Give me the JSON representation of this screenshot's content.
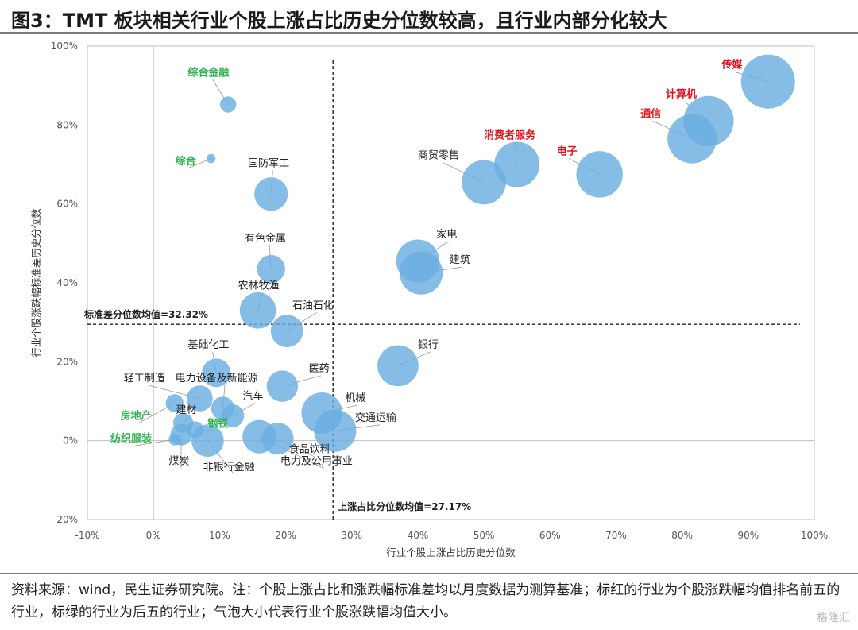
{
  "title": "图3：TMT 板块相关行业个股上涨占比历史分位数较高，且行业内部分化较大",
  "source_note": "资料来源：wind，民生证券研究院。注：个股上涨占比和涨跌幅标准差均以月度数据为测算基准；标红的行业为个股涨跌幅均值排名前五的行业，标绿的行业为后五的行业；气泡大小代表行业个股涨跌幅均值大小。",
  "watermark": "格隆汇",
  "chart_data": {
    "type": "scatter",
    "subtype": "bubble",
    "xlabel": "行业个股上涨占比历史分位数",
    "ylabel": "行业个股涨跌幅标准差历史分位数",
    "xlim": [
      -0.1,
      1.0
    ],
    "ylim": [
      -0.2,
      1.0
    ],
    "x_ticks": [
      "-10%",
      "0%",
      "10%",
      "20%",
      "30%",
      "40%",
      "50%",
      "60%",
      "70%",
      "80%",
      "90%",
      "100%"
    ],
    "y_ticks": [
      "-20%",
      "0%",
      "20%",
      "40%",
      "60%",
      "80%",
      "100%"
    ],
    "x_tick_values": [
      -0.1,
      0,
      0.1,
      0.2,
      0.3,
      0.4,
      0.5,
      0.6,
      0.7,
      0.8,
      0.9,
      1.0
    ],
    "y_tick_values": [
      -0.2,
      0,
      0.2,
      0.4,
      0.6,
      0.8,
      1.0
    ],
    "grid": false,
    "bubble_color": "#6aaee0",
    "highlight_colors": {
      "top5": "#e0141e",
      "bottom5": "#2eb34f"
    },
    "reference_lines": {
      "x": {
        "value": 0.2717,
        "label": "上涨占比分位数均值=27.17%"
      },
      "y": {
        "value": 0.3232,
        "label": "标准差分位数均值=32.32%"
      }
    },
    "points": [
      {
        "name": "传媒",
        "x": 0.93,
        "y": 0.91,
        "size": 1.0,
        "group": "top5",
        "lx": 0.86,
        "ly": 0.945,
        "anchor": "start"
      },
      {
        "name": "计算机",
        "x": 0.84,
        "y": 0.81,
        "size": 0.93,
        "group": "top5",
        "lx": 0.775,
        "ly": 0.87,
        "anchor": "start"
      },
      {
        "name": "通信",
        "x": 0.815,
        "y": 0.765,
        "size": 0.91,
        "group": "top5",
        "lx": 0.737,
        "ly": 0.82,
        "anchor": "start"
      },
      {
        "name": "电子",
        "x": 0.675,
        "y": 0.675,
        "size": 0.86,
        "group": "top5",
        "lx": 0.61,
        "ly": 0.725,
        "anchor": "start"
      },
      {
        "name": "消费者服务",
        "x": 0.55,
        "y": 0.7,
        "size": 0.84,
        "group": "top5",
        "lx": 0.5,
        "ly": 0.765,
        "anchor": "start"
      },
      {
        "name": "商贸零售",
        "x": 0.5,
        "y": 0.655,
        "size": 0.82,
        "group": "mid",
        "lx": 0.4,
        "ly": 0.715,
        "anchor": "start"
      },
      {
        "name": "家电",
        "x": 0.4,
        "y": 0.455,
        "size": 0.8,
        "group": "mid",
        "lx": 0.428,
        "ly": 0.515,
        "anchor": "start"
      },
      {
        "name": "建筑",
        "x": 0.405,
        "y": 0.425,
        "size": 0.8,
        "group": "mid",
        "lx": 0.448,
        "ly": 0.45,
        "anchor": "start"
      },
      {
        "name": "银行",
        "x": 0.37,
        "y": 0.19,
        "size": 0.76,
        "group": "mid",
        "lx": 0.4,
        "ly": 0.235,
        "anchor": "start"
      },
      {
        "name": "机械",
        "x": 0.255,
        "y": 0.07,
        "size": 0.76,
        "group": "mid",
        "lx": 0.29,
        "ly": 0.1,
        "anchor": "start"
      },
      {
        "name": "交通运输",
        "x": 0.275,
        "y": 0.025,
        "size": 0.78,
        "group": "mid",
        "lx": 0.305,
        "ly": 0.05,
        "anchor": "start"
      },
      {
        "name": "国防军工",
        "x": 0.178,
        "y": 0.625,
        "size": 0.62,
        "group": "mid",
        "lx": 0.143,
        "ly": 0.695,
        "anchor": "start"
      },
      {
        "name": "有色金属",
        "x": 0.178,
        "y": 0.435,
        "size": 0.52,
        "group": "mid",
        "lx": 0.138,
        "ly": 0.505,
        "anchor": "start"
      },
      {
        "name": "农林牧渔",
        "x": 0.158,
        "y": 0.33,
        "size": 0.67,
        "group": "mid",
        "lx": 0.128,
        "ly": 0.385,
        "anchor": "start"
      },
      {
        "name": "石油石化",
        "x": 0.202,
        "y": 0.278,
        "size": 0.6,
        "group": "mid",
        "lx": 0.21,
        "ly": 0.335,
        "anchor": "start"
      },
      {
        "name": "医药",
        "x": 0.195,
        "y": 0.138,
        "size": 0.58,
        "group": "mid",
        "lx": 0.235,
        "ly": 0.175,
        "anchor": "start"
      },
      {
        "name": "基础化工",
        "x": 0.095,
        "y": 0.172,
        "size": 0.53,
        "group": "mid",
        "lx": 0.052,
        "ly": 0.235,
        "anchor": "start"
      },
      {
        "name": "轻工制造",
        "x": 0.07,
        "y": 0.107,
        "size": 0.48,
        "group": "mid",
        "lx": -0.045,
        "ly": 0.15,
        "anchor": "start"
      },
      {
        "name": "电力设备及新能源",
        "x": 0.105,
        "y": 0.082,
        "size": 0.43,
        "group": "mid",
        "lx": 0.033,
        "ly": 0.15,
        "anchor": "start"
      },
      {
        "name": "汽车",
        "x": 0.12,
        "y": 0.063,
        "size": 0.42,
        "group": "mid",
        "lx": 0.135,
        "ly": 0.105,
        "anchor": "start"
      },
      {
        "name": "建材",
        "x": 0.045,
        "y": 0.045,
        "size": 0.37,
        "group": "mid",
        "lx": 0.034,
        "ly": 0.07,
        "anchor": "start"
      },
      {
        "name": "钢铁",
        "x": 0.063,
        "y": 0.028,
        "size": 0.31,
        "group": "bottom5",
        "lx": 0.082,
        "ly": 0.035,
        "anchor": "start"
      },
      {
        "name": "房地产",
        "x": 0.032,
        "y": 0.095,
        "size": 0.33,
        "group": "bottom5",
        "lx": -0.05,
        "ly": 0.055,
        "anchor": "start"
      },
      {
        "name": "纺织服装",
        "x": 0.032,
        "y": 0.003,
        "size": 0.22,
        "group": "bottom5",
        "lx": -0.065,
        "ly": -0.003,
        "anchor": "start"
      },
      {
        "name": "煤炭",
        "x": 0.042,
        "y": 0.015,
        "size": 0.4,
        "group": "mid",
        "lx": 0.023,
        "ly": -0.06,
        "anchor": "start"
      },
      {
        "name": "非银行金融",
        "x": 0.082,
        "y": 0.0,
        "size": 0.6,
        "group": "mid",
        "lx": 0.075,
        "ly": -0.075,
        "anchor": "start"
      },
      {
        "name": "电力及公用事业",
        "x": 0.16,
        "y": 0.01,
        "size": 0.62,
        "group": "mid",
        "lx": 0.192,
        "ly": -0.06,
        "anchor": "start"
      },
      {
        "name": "食品饮料",
        "x": 0.188,
        "y": 0.005,
        "size": 0.59,
        "group": "mid",
        "lx": 0.205,
        "ly": -0.03,
        "anchor": "start"
      },
      {
        "name": "综合金融",
        "x": 0.113,
        "y": 0.852,
        "size": 0.3,
        "group": "bottom5",
        "lx": 0.052,
        "ly": 0.925,
        "anchor": "start"
      },
      {
        "name": "综合",
        "x": 0.087,
        "y": 0.715,
        "size": 0.17,
        "group": "bottom5",
        "lx": 0.033,
        "ly": 0.7,
        "anchor": "start"
      }
    ]
  }
}
